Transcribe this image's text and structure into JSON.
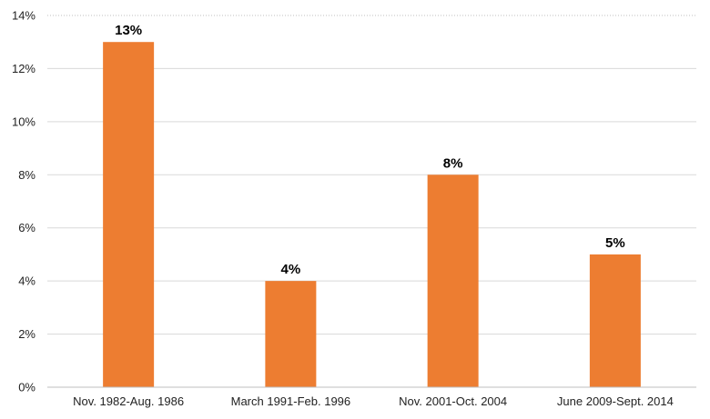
{
  "chart_data": {
    "type": "bar",
    "categories": [
      "Nov. 1982-Aug. 1986",
      "March 1991-Feb. 1996",
      "Nov. 2001-Oct. 2004",
      "June 2009-Sept. 2014"
    ],
    "values": [
      13,
      4,
      8,
      5
    ],
    "data_labels": [
      "13%",
      "4%",
      "8%",
      "5%"
    ],
    "yticks": [
      0,
      2,
      4,
      6,
      8,
      10,
      12,
      14
    ],
    "ytick_labels": [
      "0%",
      "2%",
      "4%",
      "6%",
      "8%",
      "10%",
      "12%",
      "14%"
    ],
    "ylim": [
      0,
      14
    ],
    "title": "",
    "xlabel": "",
    "ylabel": "",
    "grid": true,
    "legend": "none",
    "colors": {
      "bar": "#ed7d31",
      "grid": "#d9d9d9"
    }
  }
}
